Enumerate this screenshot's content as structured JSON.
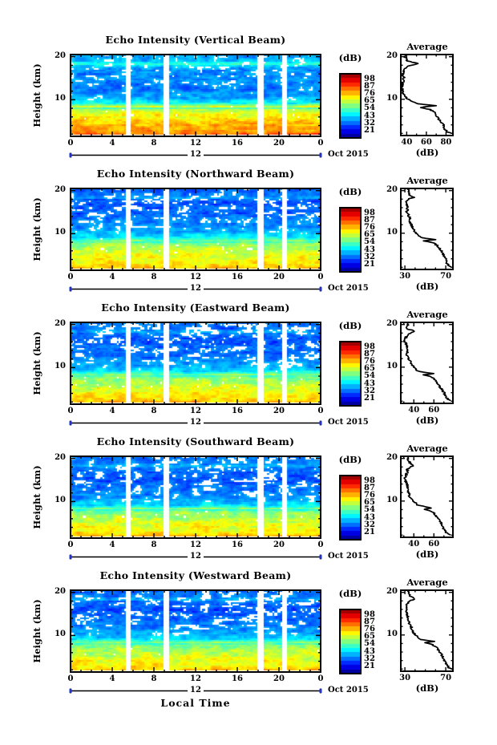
{
  "figure": {
    "ylabel": "Height (km)",
    "xlabel": "Local Time",
    "date_day": "12",
    "date_month": "Oct 2015",
    "colorbar_title": "(dB)",
    "avg_title": "Average",
    "avg_xlabel": "(dB)",
    "time_ticks": [
      0,
      4,
      8,
      12,
      16,
      20,
      24
    ],
    "time_tick_labels": [
      "0",
      "4",
      "8",
      "12",
      "16",
      "20",
      "0"
    ],
    "height_tick_values": [
      20,
      10
    ],
    "height_tick_labels": [
      "20",
      "10"
    ],
    "colorbar_tick_values": [
      98,
      87,
      76,
      65,
      54,
      43,
      32,
      21
    ],
    "colorbar_tick_labels": [
      "98",
      "87",
      "76",
      "65",
      "54",
      "43",
      "32",
      "21"
    ],
    "accent_color": "#2233cc"
  },
  "chart_data": [
    {
      "type": "heatmap",
      "beam": "vertical",
      "title": "Echo Intensity (Vertical Beam)",
      "x_axis": {
        "label": "Local Time",
        "range_hours": [
          0,
          24
        ],
        "tick_hours": [
          0,
          4,
          8,
          12,
          16,
          20,
          24
        ],
        "date": "12 Oct 2015"
      },
      "y_axis": {
        "label": "Height (km)",
        "range_km": [
          1.5,
          20.5
        ],
        "tick_km": [
          10,
          20
        ]
      },
      "color_axis": {
        "label": "(dB)",
        "tick_values": [
          98,
          87,
          76,
          65,
          54,
          43,
          32,
          21
        ],
        "colormap": "rainbow"
      },
      "data_gaps_hours": [
        [
          5.3,
          5.75
        ],
        [
          9.0,
          9.45
        ],
        [
          17.95,
          18.6
        ],
        [
          20.35,
          20.75
        ]
      ],
      "white_base": 0.48,
      "noise_seed": 11,
      "average_profile": {
        "title": "Average",
        "xlabel": "(dB)",
        "x_range": [
          34,
          87
        ],
        "x_tick_values": [
          40,
          60,
          80
        ],
        "x_tick_labels": [
          "40",
          "60",
          "80"
        ],
        "points_km_db": [
          [
            20.5,
            38
          ],
          [
            20,
            38
          ],
          [
            19,
            41
          ],
          [
            18.4,
            52
          ],
          [
            17.8,
            42
          ],
          [
            17,
            37
          ],
          [
            16,
            36
          ],
          [
            15,
            37
          ],
          [
            14,
            36
          ],
          [
            13,
            35
          ],
          [
            12,
            36
          ],
          [
            11,
            37
          ],
          [
            10,
            41
          ],
          [
            9.4,
            46
          ],
          [
            9,
            50
          ],
          [
            8.5,
            70
          ],
          [
            8.1,
            53
          ],
          [
            7.6,
            64
          ],
          [
            7,
            68
          ],
          [
            6,
            71
          ],
          [
            5,
            74
          ],
          [
            4,
            77
          ],
          [
            3,
            79
          ],
          [
            2.4,
            81
          ],
          [
            2,
            85
          ],
          [
            1.5,
            85
          ]
        ]
      }
    },
    {
      "type": "heatmap",
      "beam": "northward",
      "title": "Echo Intensity (Northward Beam)",
      "x_axis": {
        "label": "Local Time",
        "range_hours": [
          0,
          24
        ],
        "tick_hours": [
          0,
          4,
          8,
          12,
          16,
          20,
          24
        ],
        "date": "12 Oct 2015"
      },
      "y_axis": {
        "label": "Height (km)",
        "range_km": [
          1.5,
          20.5
        ],
        "tick_km": [
          10,
          20
        ]
      },
      "color_axis": {
        "label": "(dB)",
        "tick_values": [
          98,
          87,
          76,
          65,
          54,
          43,
          32,
          21
        ],
        "colormap": "rainbow"
      },
      "data_gaps_hours": [
        [
          5.3,
          5.75
        ],
        [
          9.0,
          9.45
        ],
        [
          17.95,
          18.6
        ],
        [
          20.35,
          20.75
        ]
      ],
      "white_base": 0.4,
      "noise_seed": 22,
      "average_profile": {
        "title": "Average",
        "xlabel": "(dB)",
        "x_range": [
          26,
          77
        ],
        "x_tick_values": [
          30,
          70
        ],
        "x_tick_labels": [
          "30",
          "70"
        ],
        "points_km_db": [
          [
            20.5,
            33
          ],
          [
            20,
            33
          ],
          [
            19,
            35
          ],
          [
            18.4,
            39
          ],
          [
            18,
            33
          ],
          [
            17,
            31
          ],
          [
            16,
            33
          ],
          [
            15,
            32
          ],
          [
            14,
            34
          ],
          [
            13,
            35
          ],
          [
            12,
            36
          ],
          [
            11,
            38
          ],
          [
            10,
            41
          ],
          [
            9,
            45
          ],
          [
            8.5,
            59
          ],
          [
            8.2,
            49
          ],
          [
            7.8,
            58
          ],
          [
            7,
            62
          ],
          [
            6,
            65
          ],
          [
            5,
            68
          ],
          [
            4,
            70
          ],
          [
            3,
            71
          ],
          [
            2.4,
            73
          ],
          [
            2,
            75
          ],
          [
            1.5,
            75
          ]
        ]
      }
    },
    {
      "type": "heatmap",
      "beam": "eastward",
      "title": "Echo Intensity (Eastward Beam)",
      "x_axis": {
        "label": "Local Time",
        "range_hours": [
          0,
          24
        ],
        "tick_hours": [
          0,
          4,
          8,
          12,
          16,
          20,
          24
        ],
        "date": "12 Oct 2015"
      },
      "y_axis": {
        "label": "Height (km)",
        "range_km": [
          1.5,
          20.5
        ],
        "tick_km": [
          10,
          20
        ]
      },
      "color_axis": {
        "label": "(dB)",
        "tick_values": [
          98,
          87,
          76,
          65,
          54,
          43,
          32,
          21
        ],
        "colormap": "rainbow"
      },
      "data_gaps_hours": [
        [
          5.3,
          5.75
        ],
        [
          9.0,
          9.45
        ],
        [
          17.95,
          18.6
        ],
        [
          20.35,
          20.75
        ]
      ],
      "white_base": 0.4,
      "noise_seed": 33,
      "average_profile": {
        "title": "Average",
        "xlabel": "(dB)",
        "x_range": [
          27,
          79
        ],
        "x_tick_values": [
          40,
          60
        ],
        "x_tick_labels": [
          "40",
          "60"
        ],
        "points_km_db": [
          [
            20.5,
            34
          ],
          [
            20,
            34
          ],
          [
            19,
            33
          ],
          [
            18.5,
            41
          ],
          [
            18,
            36
          ],
          [
            17,
            32
          ],
          [
            16,
            31
          ],
          [
            15,
            33
          ],
          [
            14,
            34
          ],
          [
            13,
            33
          ],
          [
            12,
            35
          ],
          [
            11,
            37
          ],
          [
            10,
            40
          ],
          [
            9,
            44
          ],
          [
            8.5,
            60
          ],
          [
            8.2,
            50
          ],
          [
            7.8,
            58
          ],
          [
            7,
            61
          ],
          [
            6,
            64
          ],
          [
            5,
            67
          ],
          [
            4,
            70
          ],
          [
            3,
            72
          ],
          [
            2.4,
            74
          ],
          [
            2,
            77
          ],
          [
            1.5,
            77
          ]
        ]
      }
    },
    {
      "type": "heatmap",
      "beam": "southward",
      "title": "Echo Intensity (Southward Beam)",
      "x_axis": {
        "label": "Local Time",
        "range_hours": [
          0,
          24
        ],
        "tick_hours": [
          0,
          4,
          8,
          12,
          16,
          20,
          24
        ],
        "date": "12 Oct 2015"
      },
      "y_axis": {
        "label": "Height (km)",
        "range_km": [
          1.5,
          20.5
        ],
        "tick_km": [
          10,
          20
        ]
      },
      "color_axis": {
        "label": "(dB)",
        "tick_values": [
          98,
          87,
          76,
          65,
          54,
          43,
          32,
          21
        ],
        "colormap": "rainbow"
      },
      "data_gaps_hours": [
        [
          5.3,
          5.75
        ],
        [
          9.0,
          9.45
        ],
        [
          17.95,
          18.6
        ],
        [
          20.35,
          20.75
        ]
      ],
      "white_base": 0.4,
      "noise_seed": 44,
      "average_profile": {
        "title": "Average",
        "xlabel": "(dB)",
        "x_range": [
          27,
          79
        ],
        "x_tick_values": [
          40,
          60
        ],
        "x_tick_labels": [
          "40",
          "60"
        ],
        "points_km_db": [
          [
            20.5,
            34
          ],
          [
            20,
            34
          ],
          [
            19,
            36
          ],
          [
            18.3,
            40
          ],
          [
            17.5,
            33
          ],
          [
            17,
            34
          ],
          [
            16,
            32
          ],
          [
            15,
            31
          ],
          [
            14,
            33
          ],
          [
            13,
            34
          ],
          [
            12,
            35
          ],
          [
            11,
            36
          ],
          [
            10,
            40
          ],
          [
            9,
            44
          ],
          [
            8.4,
            58
          ],
          [
            8.1,
            50
          ],
          [
            7.7,
            57
          ],
          [
            7,
            61
          ],
          [
            6,
            64
          ],
          [
            5,
            67
          ],
          [
            4,
            69
          ],
          [
            3,
            71
          ],
          [
            2.4,
            73
          ],
          [
            2,
            76
          ],
          [
            1.5,
            76
          ]
        ]
      }
    },
    {
      "type": "heatmap",
      "beam": "westward",
      "title": "Echo Intensity (Westward Beam)",
      "x_axis": {
        "label": "Local Time",
        "range_hours": [
          0,
          24
        ],
        "tick_hours": [
          0,
          4,
          8,
          12,
          16,
          20,
          24
        ],
        "date": "12 Oct 2015"
      },
      "y_axis": {
        "label": "Height (km)",
        "range_km": [
          1.5,
          20.5
        ],
        "tick_km": [
          10,
          20
        ]
      },
      "color_axis": {
        "label": "(dB)",
        "tick_values": [
          98,
          87,
          76,
          65,
          54,
          43,
          32,
          21
        ],
        "colormap": "rainbow"
      },
      "data_gaps_hours": [
        [
          5.3,
          5.75
        ],
        [
          9.0,
          9.45
        ],
        [
          17.95,
          18.6
        ],
        [
          20.35,
          20.75
        ]
      ],
      "white_base": 0.4,
      "noise_seed": 55,
      "average_profile": {
        "title": "Average",
        "xlabel": "(dB)",
        "x_range": [
          26,
          77
        ],
        "x_tick_values": [
          30,
          70
        ],
        "x_tick_labels": [
          "30",
          "70"
        ],
        "points_km_db": [
          [
            20.5,
            33
          ],
          [
            20,
            33
          ],
          [
            19,
            36
          ],
          [
            18.4,
            40
          ],
          [
            18,
            34
          ],
          [
            17,
            32
          ],
          [
            16,
            31
          ],
          [
            15,
            32
          ],
          [
            14,
            33
          ],
          [
            13,
            34
          ],
          [
            12,
            36
          ],
          [
            11,
            37
          ],
          [
            10,
            40
          ],
          [
            9,
            45
          ],
          [
            8.5,
            58
          ],
          [
            8.2,
            49
          ],
          [
            7.8,
            57
          ],
          [
            7,
            61
          ],
          [
            6,
            64
          ],
          [
            5,
            67
          ],
          [
            4,
            69
          ],
          [
            3,
            71
          ],
          [
            2.4,
            73
          ],
          [
            2,
            75
          ],
          [
            1.5,
            75
          ]
        ]
      }
    }
  ]
}
